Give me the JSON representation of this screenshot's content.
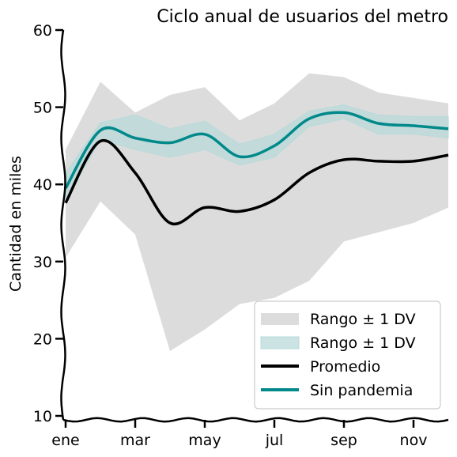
{
  "chart_data": {
    "type": "line",
    "title": "Ciclo anual de usuarios del metro",
    "xlabel": "",
    "ylabel": "Cantidad en miles",
    "ylim": [
      10,
      60
    ],
    "yticks": [
      10,
      20,
      30,
      40,
      50,
      60
    ],
    "xlim": [
      1,
      12
    ],
    "xticks": [
      {
        "value": 1,
        "label": "ene"
      },
      {
        "value": 3,
        "label": "mar"
      },
      {
        "value": 5,
        "label": "may"
      },
      {
        "value": 7,
        "label": "jul"
      },
      {
        "value": 9,
        "label": "sep"
      },
      {
        "value": 11,
        "label": "nov"
      }
    ],
    "x": [
      1,
      2,
      3,
      4,
      5,
      6,
      7,
      8,
      9,
      10,
      11,
      12
    ],
    "series": [
      {
        "name": "Rango ± 1 DV",
        "kind": "band",
        "color": "#dcdcdc",
        "lower": [
          30.5,
          37.8,
          33.5,
          18.4,
          21.2,
          24.5,
          25.3,
          27.5,
          32.6,
          33.8,
          35.0,
          37.0
        ],
        "upper": [
          44.5,
          53.3,
          49.3,
          51.6,
          52.6,
          48.3,
          50.5,
          54.4,
          53.9,
          51.9,
          51.2,
          50.5
        ]
      },
      {
        "name": "Rango ± 1 DV",
        "kind": "band",
        "color": "#b9dada",
        "lower": [
          38.0,
          45.8,
          44.5,
          43.5,
          44.5,
          42.5,
          43.5,
          47.5,
          48.5,
          46.5,
          46.5,
          46.0
        ],
        "upper": [
          41.5,
          48.0,
          49.0,
          47.2,
          48.2,
          45.2,
          46.5,
          49.5,
          50.3,
          49.0,
          48.8,
          48.8
        ]
      },
      {
        "name": "Promedio",
        "kind": "line",
        "color": "#000000",
        "values": [
          37.6,
          45.6,
          41.5,
          35.0,
          37.0,
          36.5,
          38.0,
          41.5,
          43.2,
          43.0,
          43.0,
          43.8
        ]
      },
      {
        "name": "Sin pandemia",
        "kind": "line",
        "color": "#00898a",
        "values": [
          39.5,
          47.0,
          46.0,
          45.4,
          46.5,
          43.6,
          45.0,
          48.5,
          49.3,
          47.9,
          47.6,
          47.2
        ]
      }
    ],
    "legend": {
      "position": "bottom-right",
      "entries": [
        "Rango ± 1 DV",
        "Rango ± 1 DV",
        "Promedio",
        "Sin pandemia"
      ]
    },
    "grid": false
  }
}
